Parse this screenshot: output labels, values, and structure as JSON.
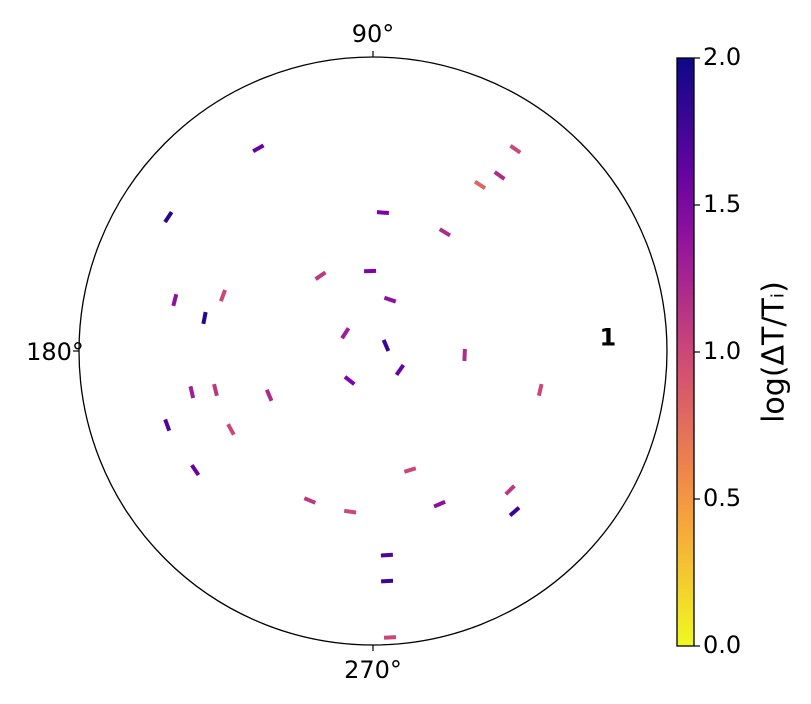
{
  "chart_data": {
    "type": "polar_scatter",
    "theta": [
      54.2,
      54.8,
      119.5,
      146.8,
      168.9,
      159.7,
      165.6,
      199.8,
      192.8,
      193.9,
      213.8,
      208.9,
      247.1,
      261.9,
      273.9,
      273.5,
      273.4,
      311.4,
      314.6,
      346.9,
      357.5,
      324.9,
      147.3,
      23,
      85.9,
      124.9,
      92.1,
      71.6,
      58.8,
      287.3,
      231.6,
      203.1,
      293.5,
      57.2
    ],
    "r": [
      0.92,
      1.05,
      0.99,
      1.04,
      0.73,
      0.68,
      0.87,
      0.93,
      0.79,
      0.69,
      0.91,
      0.69,
      0.69,
      0.69,
      0.87,
      0.98,
      1.22,
      0.91,
      0.83,
      0.73,
      0.39,
      0.14,
      0.14,
      0.06,
      0.59,
      0.39,
      0.34,
      0.23,
      0.59,
      0.53,
      0.16,
      0.48,
      0.71,
      0.84
    ],
    "values": [
      1.2,
      1.0,
      1.6,
      1.9,
      1.9,
      1.0,
      1.4,
      1.7,
      1.3,
      1.1,
      1.6,
      1.0,
      1.1,
      1.0,
      1.7,
      1.8,
      1.0,
      1.8,
      1.1,
      1.0,
      1.2,
      1.6,
      1.3,
      1.8,
      1.5,
      1.1,
      1.5,
      1.4,
      1.2,
      1.0,
      1.5,
      1.2,
      1.4,
      0.8
    ],
    "rlim": [
      0,
      1.25
    ],
    "rticks": [
      1
    ],
    "thetaticks": [
      {
        "value": 90,
        "label": "90°"
      },
      {
        "value": 180,
        "label": "180°"
      },
      {
        "value": 270,
        "label": "270°"
      }
    ],
    "colormap": "plasma_r",
    "clim": [
      0,
      2
    ],
    "cticks": [
      {
        "value": 0,
        "label": "0.0"
      },
      {
        "value": 0.5,
        "label": "0.5"
      },
      {
        "value": 1,
        "label": "1.0"
      },
      {
        "value": 1.5,
        "label": "1.5"
      },
      {
        "value": 2,
        "label": "2.0"
      }
    ],
    "colorbar_label": "log(ΔT/Tᵢ)"
  }
}
